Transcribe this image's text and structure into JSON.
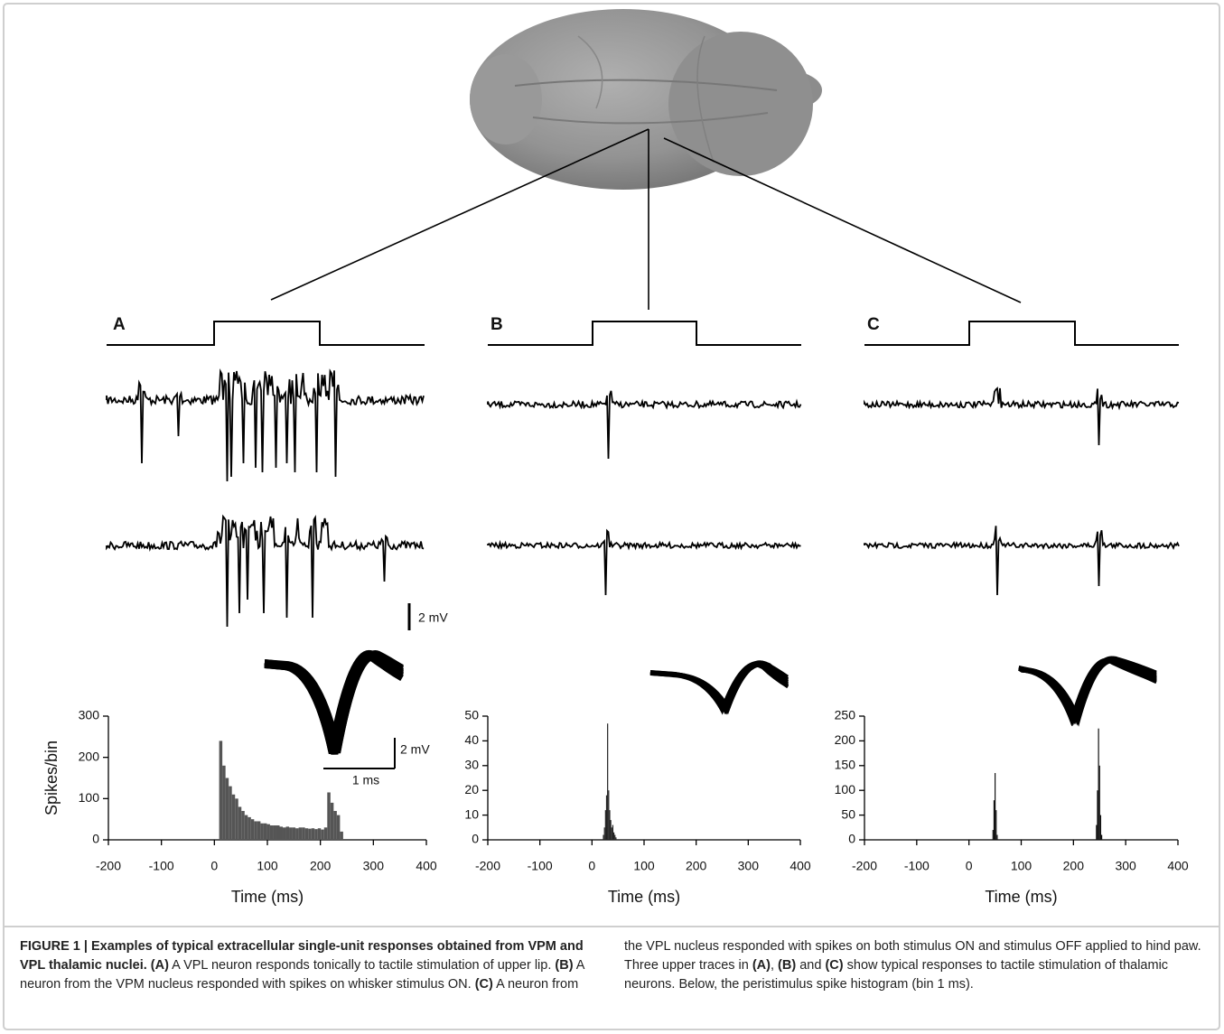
{
  "figure": {
    "panel_labels": [
      "A",
      "B",
      "C"
    ],
    "scale_bars": {
      "trace_amplitude": "2 mV",
      "waveform_amplitude": "2 mV",
      "waveform_time": "1 ms"
    }
  },
  "chart_data": [
    {
      "type": "bar",
      "xlabel": "Time (ms)",
      "ylabel": "Spikes/bin",
      "color": "#555555",
      "x": [
        12,
        18,
        24,
        30,
        36,
        42,
        48,
        54,
        60,
        66,
        72,
        78,
        84,
        90,
        96,
        102,
        108,
        114,
        120,
        126,
        132,
        138,
        144,
        150,
        156,
        162,
        168,
        174,
        180,
        186,
        192,
        198,
        204,
        210,
        216,
        222,
        228,
        234,
        240
      ],
      "values": [
        240,
        180,
        150,
        130,
        110,
        100,
        80,
        70,
        60,
        55,
        50,
        45,
        45,
        40,
        40,
        38,
        35,
        35,
        35,
        32,
        30,
        32,
        30,
        30,
        28,
        30,
        30,
        28,
        27,
        28,
        26,
        28,
        25,
        30,
        115,
        90,
        70,
        60,
        20
      ],
      "xlim": [
        -200,
        400
      ],
      "xticks": [
        -200,
        -100,
        0,
        100,
        200,
        300,
        400
      ],
      "ylim": [
        0,
        300
      ],
      "yticks": [
        0,
        100,
        200,
        300
      ]
    },
    {
      "type": "bar",
      "xlabel": "Time (ms)",
      "color": "#222222",
      "x": [
        22,
        24,
        26,
        28,
        30,
        32,
        34,
        36,
        38,
        40,
        42,
        44,
        46
      ],
      "values": [
        2,
        5,
        12,
        18,
        47,
        20,
        12,
        8,
        5,
        6,
        3,
        2,
        1
      ],
      "xlim": [
        -200,
        400
      ],
      "xticks": [
        -200,
        -100,
        0,
        100,
        200,
        300,
        400
      ],
      "ylim": [
        0,
        50
      ],
      "yticks": [
        0,
        10,
        20,
        30,
        40,
        50
      ]
    },
    {
      "type": "bar",
      "xlabel": "Time (ms)",
      "color": "#111111",
      "x": [
        46,
        48,
        50,
        52,
        54,
        244,
        246,
        248,
        250,
        252,
        254
      ],
      "values": [
        20,
        80,
        135,
        60,
        10,
        30,
        100,
        225,
        150,
        50,
        10
      ],
      "xlim": [
        -200,
        400
      ],
      "xticks": [
        -200,
        -100,
        0,
        100,
        200,
        300,
        400
      ],
      "ylim": [
        0,
        250
      ],
      "yticks": [
        0,
        50,
        100,
        150,
        200,
        250
      ]
    }
  ],
  "caption": {
    "segments": [
      "FIGURE 1 | Examples of typical extracellular single-unit responses obtained from VPM and VPL thalamic nuclei.",
      " (A)",
      " A VPL neuron responds tonically to tactile stimulation of upper lip.",
      " (B)",
      " A neuron from the VPM nucleus responded with spikes on whisker stimulus ON.",
      " (C)",
      " A neuron from the VPL nucleus responded with spikes on both stimulus ON and stimulus OFF applied to hind paw. Three upper traces in",
      " (A)",
      ",",
      " (B)",
      " and",
      " (C)",
      " show typical responses to tactile stimulation of thalamic neurons. Below, the peristimulus spike histogram (bin 1 ms)."
    ]
  }
}
